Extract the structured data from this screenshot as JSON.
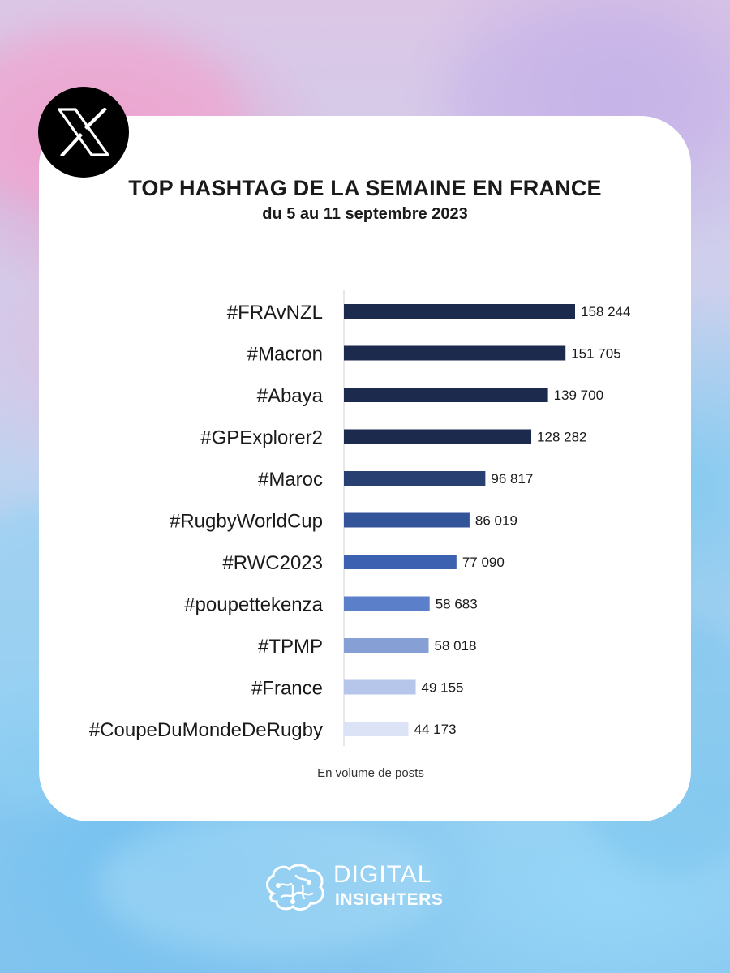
{
  "header": {
    "title": "TOP HASHTAG DE LA SEMAINE EN FRANCE",
    "subtitle": "du 5 au 11 septembre 2023",
    "note": "En volume de posts"
  },
  "logo": {
    "icon": "x-logo-icon"
  },
  "brand": {
    "line1": "DIGITAL",
    "line2": "INSIGHTERS",
    "icon": "brain-icon"
  },
  "chart_data": {
    "type": "bar",
    "orientation": "horizontal",
    "title": "TOP HASHTAG DE LA SEMAINE EN FRANCE",
    "subtitle": "du 5 au 11 septembre 2023",
    "xlabel": "",
    "ylabel": "",
    "categories": [
      "#FRAvNZL",
      "#Macron",
      "#Abaya",
      "#GPExplorer2",
      "#Maroc",
      "#RugbyWorldCup",
      "#RWC2023",
      "#poupettekenza",
      "#TPMP",
      "#France",
      "#CoupeDuMondeDeRugby"
    ],
    "values": [
      158244,
      151705,
      139700,
      128282,
      96817,
      86019,
      77090,
      58683,
      58018,
      49155,
      44173
    ],
    "value_labels": [
      "158 244",
      "151 705",
      "139 700",
      "128 282",
      "96 817",
      "86 019",
      "77 090",
      "58 683",
      "58 018",
      "49 155",
      "44 173"
    ],
    "colors": [
      "#1c2a4d",
      "#1c2a4d",
      "#1c2a4d",
      "#1c2a4d",
      "#283f72",
      "#33549a",
      "#3c61b0",
      "#5b7fc8",
      "#86a0d6",
      "#b6c6ea",
      "#dde3f6"
    ],
    "grid": false,
    "legend": "none"
  }
}
